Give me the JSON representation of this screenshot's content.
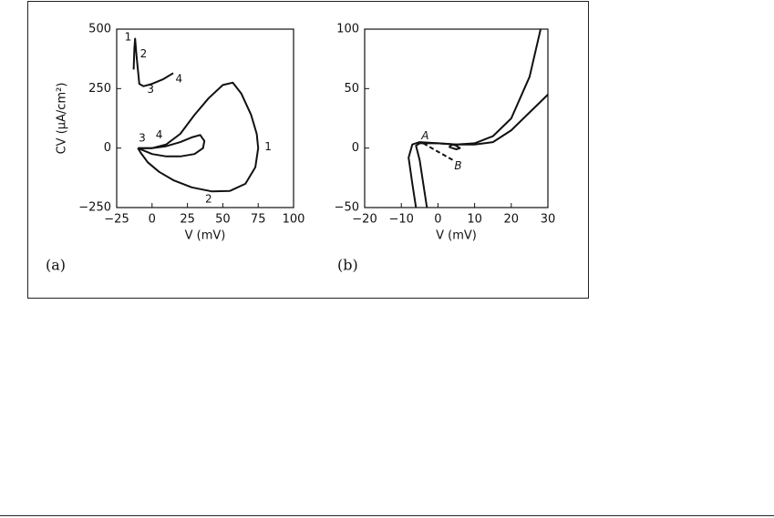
{
  "chart_data": [
    {
      "type": "line",
      "panel_label": "(a)",
      "xlabel": "V (mV)",
      "ylabel": "CV (μA/cm²)",
      "xlim": [
        -25,
        100
      ],
      "ylim": [
        -250,
        500
      ],
      "xticks": [
        {
          "value": -25,
          "label": "−25"
        },
        0,
        25,
        50,
        75,
        100
      ],
      "yticks": [
        {
          "value": -250,
          "label": "−250"
        },
        0,
        250,
        500
      ],
      "series": [
        {
          "color": "#111",
          "x": [
            -13,
            -12.5,
            -12,
            -11,
            -9,
            -6,
            0,
            8,
            15
          ],
          "values": [
            330,
            420,
            460,
            390,
            270,
            260,
            270,
            290,
            315
          ]
        },
        {
          "color": "#111",
          "x": [
            -10,
            0,
            10,
            20,
            30,
            40,
            50,
            57,
            63,
            70,
            74,
            75,
            73,
            66,
            55,
            42,
            28,
            15,
            5,
            -3,
            -8,
            -10
          ],
          "values": [
            0,
            0,
            15,
            60,
            140,
            210,
            265,
            275,
            230,
            140,
            60,
            0,
            -80,
            -150,
            -180,
            -182,
            -165,
            -135,
            -100,
            -60,
            -20,
            0
          ]
        },
        {
          "color": "#111",
          "x": [
            -10,
            0,
            10,
            20,
            28,
            34,
            37,
            36,
            30,
            20,
            10,
            0,
            -6,
            -10
          ],
          "values": [
            0,
            0,
            8,
            25,
            45,
            55,
            30,
            0,
            -25,
            -35,
            -35,
            -25,
            -10,
            0
          ]
        }
      ],
      "annotations": [
        {
          "text": "1",
          "x": -17,
          "y": 465
        },
        {
          "text": "2",
          "x": -6,
          "y": 395
        },
        {
          "text": "3",
          "x": -1,
          "y": 245
        },
        {
          "text": "4",
          "x": 19,
          "y": 290
        },
        {
          "text": "3",
          "x": -7,
          "y": 40
        },
        {
          "text": "4",
          "x": 5,
          "y": 55
        },
        {
          "text": "1",
          "x": 82,
          "y": 5
        },
        {
          "text": "2",
          "x": 40,
          "y": -215
        }
      ]
    },
    {
      "type": "line",
      "panel_label": "(b)",
      "xlabel": "V (mV)",
      "xlim": [
        -20,
        30
      ],
      "ylim": [
        -50,
        100
      ],
      "xticks": [
        {
          "value": -20,
          "label": "−20"
        },
        {
          "value": -10,
          "label": "−10"
        },
        0,
        10,
        20,
        30
      ],
      "yticks": [
        {
          "value": -50,
          "label": "−50"
        },
        0,
        50,
        100
      ],
      "series": [
        {
          "color": "#111",
          "x": [
            -3,
            -4,
            -5,
            -6,
            -5,
            0,
            5,
            10,
            15,
            20,
            25,
            28
          ],
          "values": [
            -50,
            -30,
            -10,
            2,
            4,
            4,
            3,
            4,
            10,
            25,
            60,
            100
          ]
        },
        {
          "color": "#111",
          "x": [
            -6,
            -7,
            -8,
            -7,
            -5,
            0,
            5,
            10,
            15,
            20,
            25,
            30
          ],
          "values": [
            -50,
            -30,
            -8,
            3,
            5,
            4,
            3,
            3,
            5,
            15,
            30,
            45
          ]
        },
        {
          "color": "#111",
          "x": [
            3,
            4,
            5,
            6,
            5,
            4,
            3
          ],
          "values": [
            1,
            3,
            2,
            0,
            -1,
            0,
            1
          ]
        },
        {
          "color": "#111",
          "dashed": true,
          "x": [
            -4,
            0,
            4
          ],
          "values": [
            4,
            -3,
            -10
          ]
        }
      ],
      "annotations": [
        {
          "text": "A",
          "x": -3.5,
          "y": 10
        },
        {
          "text": "B",
          "x": 5.5,
          "y": -15
        }
      ]
    }
  ]
}
